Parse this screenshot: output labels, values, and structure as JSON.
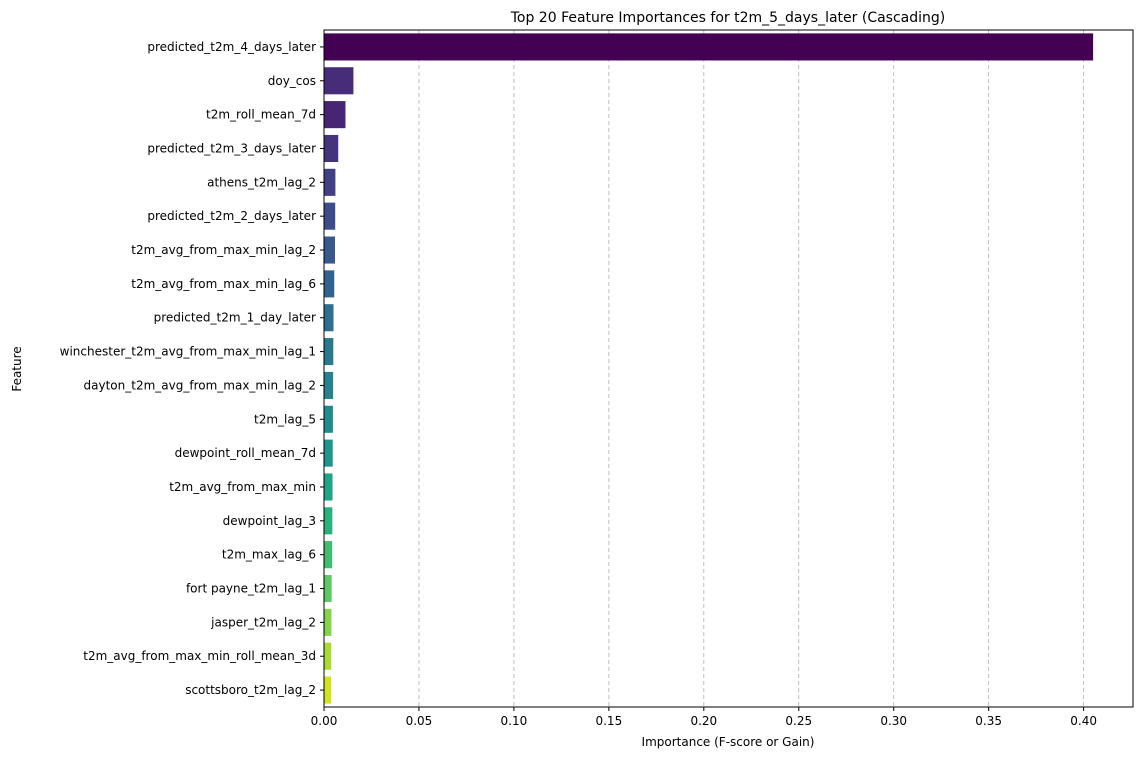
{
  "chart_data": {
    "type": "bar",
    "orientation": "horizontal",
    "title": "Top 20 Feature Importances for t2m_5_days_later (Cascading)",
    "xlabel": "Importance (F-score or Gain)",
    "ylabel": "Feature",
    "xlim": [
      0,
      0.426
    ],
    "x_ticks": [
      0.0,
      0.05,
      0.1,
      0.15,
      0.2,
      0.25,
      0.3,
      0.35,
      0.4
    ],
    "x_tick_labels": [
      "0.00",
      "0.05",
      "0.10",
      "0.15",
      "0.20",
      "0.25",
      "0.30",
      "0.35",
      "0.40"
    ],
    "grid": "vertical dashed",
    "palette": "viridis",
    "categories": [
      "predicted_t2m_4_days_later",
      "doy_cos",
      "t2m_roll_mean_7d",
      "predicted_t2m_3_days_later",
      "athens_t2m_lag_2",
      "predicted_t2m_2_days_later",
      "t2m_avg_from_max_min_lag_2",
      "t2m_avg_from_max_min_lag_6",
      "predicted_t2m_1_day_later",
      "winchester_t2m_avg_from_max_min_lag_1",
      "dayton_t2m_avg_from_max_min_lag_2",
      "t2m_lag_5",
      "dewpoint_roll_mean_7d",
      "t2m_avg_from_max_min",
      "dewpoint_lag_3",
      "t2m_max_lag_6",
      "fort payne_t2m_lag_1",
      "jasper_t2m_lag_2",
      "t2m_avg_from_max_min_roll_mean_3d",
      "scottsboro_t2m_lag_2"
    ],
    "values": [
      0.405,
      0.0155,
      0.0113,
      0.0075,
      0.006,
      0.0059,
      0.0058,
      0.0054,
      0.005,
      0.0049,
      0.0048,
      0.0047,
      0.0046,
      0.0045,
      0.0044,
      0.0043,
      0.004,
      0.0039,
      0.0038,
      0.0037
    ],
    "colors": [
      "#440154",
      "#472c7a",
      "#482475",
      "#45337d",
      "#423f85",
      "#3d4c8a",
      "#38598c",
      "#33638d",
      "#2e6e8e",
      "#2a788e",
      "#26828e",
      "#228b8d",
      "#1f958b",
      "#20a386",
      "#2cb17e",
      "#40bd72",
      "#5ec962",
      "#84d44b",
      "#a8db34",
      "#d2e21b"
    ]
  }
}
